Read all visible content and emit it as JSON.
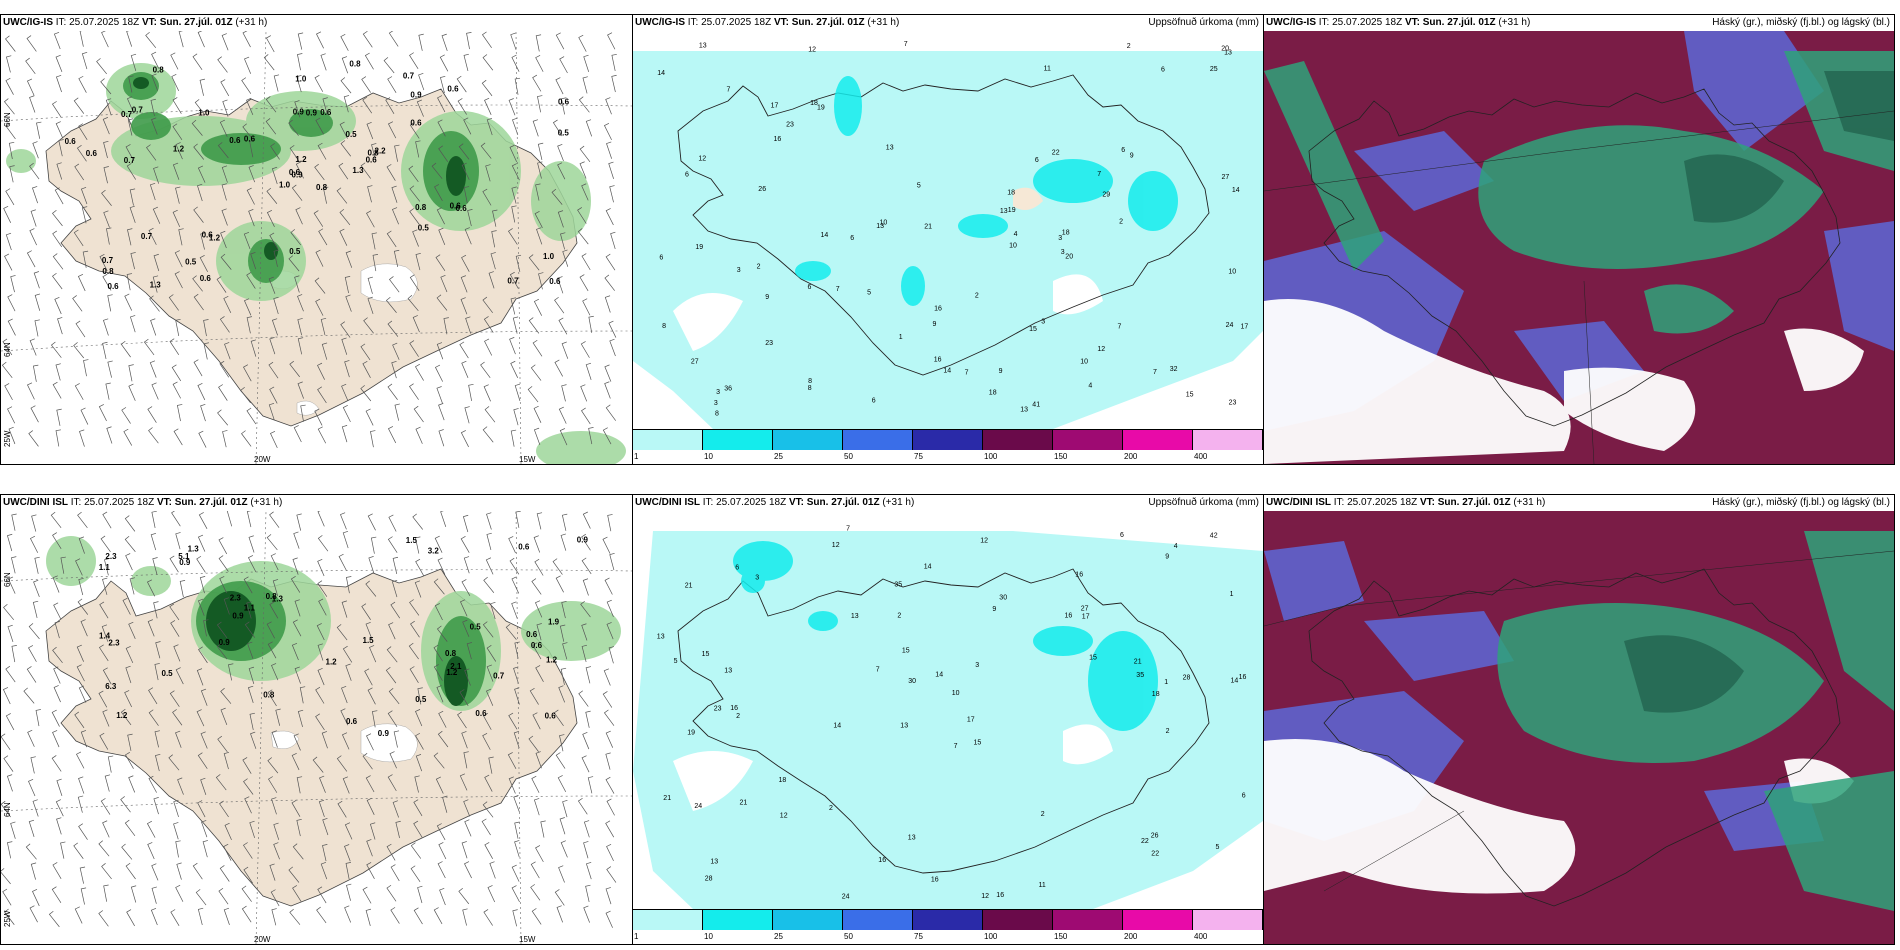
{
  "panels": {
    "top_left": {
      "model": "UWC/IG-IS",
      "it_label": "IT:",
      "it": "25.07.2025 18Z",
      "vt_label": "VT:",
      "vt": "Sun. 27.júl. 01Z",
      "lead": "(+31 h)",
      "title_right": ""
    },
    "top_mid": {
      "model": "UWC/IG-IS",
      "it_label": "IT:",
      "it": "25.07.2025 18Z",
      "vt_label": "VT:",
      "vt": "Sun. 27.júl. 01Z",
      "lead": "(+31 h)",
      "title_right": "Uppsöfnuð úrkoma (mm)"
    },
    "top_right": {
      "model": "UWC/IG-IS",
      "it_label": "IT:",
      "it": "25.07.2025 18Z",
      "vt_label": "VT:",
      "vt": "Sun. 27.júl. 01Z",
      "lead": "(+31 h)",
      "title_right": "Háský (gr.), miðský (fj.bl.) og lágský (bl.)"
    },
    "bot_left": {
      "model": "UWC/DINI ISL",
      "it_label": "IT:",
      "it": "25.07.2025 18Z",
      "vt_label": "VT:",
      "vt": "Sun. 27.júl. 01Z",
      "lead": "(+31 h)",
      "title_right": ""
    },
    "bot_mid": {
      "model": "UWC/DINI ISL",
      "it_label": "IT:",
      "it": "25.07.2025 18Z",
      "vt_label": "VT:",
      "vt": "Sun. 27.júl. 01Z",
      "lead": "(+31 h)",
      "title_right": "Uppsöfnuð úrkoma (mm)"
    },
    "bot_right": {
      "model": "UWC/DINI ISL",
      "it_label": "IT:",
      "it": "25.07.2025 18Z",
      "vt_label": "VT:",
      "vt": "Sun. 27.júl. 01Z",
      "lead": "(+31 h)",
      "title_right": "Háský (gr.), miðský (fj.bl.) og lágský (bl.)"
    }
  },
  "grid_labels": {
    "lon_20w": "20W",
    "lon_15w": "15W",
    "lat_66n": "66N",
    "lat_64n": "64N",
    "lat_25w": "25W"
  },
  "colorbar": {
    "ticks": [
      "1",
      "10",
      "25",
      "50",
      "75",
      "100",
      "150",
      "200",
      "400"
    ],
    "colors": [
      "#b9f8f6",
      "#14ecec",
      "#18c0e8",
      "#3a6ee8",
      "#2a2aa8",
      "#6a0a4a",
      "#9e0a72",
      "#e80aa8",
      "#f4b2ee"
    ]
  },
  "labels_top_left": [
    "0.8",
    "0.7",
    "0.9",
    "0.7",
    "0.8",
    "1.2",
    "0.7",
    "0.6",
    "0.9",
    "1.3",
    "0.8",
    "0.6",
    "0.7",
    "0.6",
    "1.0",
    "0.6",
    "1.3",
    "0.9",
    "0.5",
    "0.7",
    "0.6",
    "0.8",
    "0.5",
    "0.9",
    "2.2",
    "0.6",
    "0.7",
    "1.0",
    "0.6",
    "0.8",
    "0.5",
    "0.6",
    "0.5",
    "1.2",
    "1.0",
    "0.6",
    "0.6",
    "0.7",
    "1.0",
    "0.6",
    "0.8",
    "0.6",
    "1.2",
    "0.5",
    "0.6",
    "0.6",
    "0.6",
    "0.6"
  ],
  "labels_bot_left": [
    "0.8",
    "0.6",
    "1.2",
    "1.3",
    "1.3",
    "0.6",
    "6.3",
    "3.2",
    "2.3",
    "0.9",
    "1.1",
    "1.4",
    "2.3",
    "0.6",
    "0.8",
    "1.9",
    "1.2",
    "1.5",
    "0.8",
    "0.5",
    "0.9",
    "0.6",
    "0.9",
    "1.2",
    "1.5",
    "5.1",
    "2.1",
    "2.3",
    "0.9",
    "0.5",
    "0.6",
    "0.5",
    "1.1",
    "0.9",
    "0.6",
    "0.7",
    "1.2"
  ],
  "labels_top_mid": [
    "6",
    "13",
    "8",
    "10",
    "12",
    "7",
    "14",
    "15",
    "7",
    "13",
    "6",
    "14",
    "10",
    "9",
    "11",
    "13",
    "12",
    "8",
    "6",
    "14",
    "15",
    "13",
    "18",
    "3",
    "9",
    "2",
    "8",
    "9",
    "13",
    "20",
    "21",
    "41",
    "16",
    "25",
    "23",
    "18",
    "24",
    "27",
    "22",
    "32",
    "19",
    "29",
    "17",
    "36",
    "19",
    "3",
    "10",
    "18",
    "17",
    "16",
    "20",
    "27",
    "23",
    "7",
    "6",
    "6",
    "13",
    "5",
    "18",
    "19",
    "7",
    "4",
    "16",
    "2",
    "7",
    "3",
    "4",
    "14",
    "8",
    "6",
    "1",
    "2",
    "23",
    "26",
    "7",
    "3",
    "10",
    "6",
    "5",
    "6",
    "2",
    "9",
    "12",
    "7",
    "3",
    "3"
  ],
  "labels_bot_mid": [
    "7",
    "16",
    "14",
    "13",
    "15",
    "16",
    "21",
    "16",
    "19",
    "9",
    "10",
    "28",
    "12",
    "14",
    "12",
    "16",
    "13",
    "6",
    "15",
    "18",
    "13",
    "23",
    "16",
    "28",
    "21",
    "15",
    "30",
    "35",
    "26",
    "24",
    "22",
    "30",
    "21",
    "7",
    "2",
    "6",
    "21",
    "16",
    "42",
    "14",
    "13",
    "24",
    "11",
    "6",
    "16",
    "17",
    "22",
    "27",
    "13",
    "17",
    "35",
    "18",
    "3",
    "9",
    "12",
    "12",
    "15",
    "14",
    "4",
    "2",
    "5",
    "2",
    "3",
    "2",
    "7",
    "5",
    "1",
    "2",
    "13",
    "1"
  ]
}
